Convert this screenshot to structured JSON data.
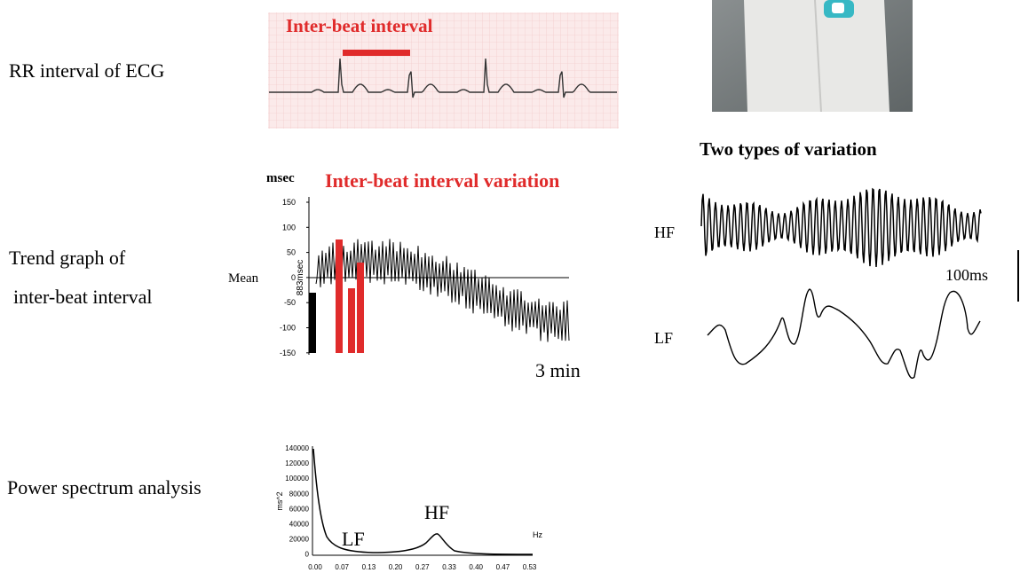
{
  "left_labels": {
    "ecg": "RR interval of ECG",
    "trend": [
      "Trend graph of",
      "inter-beat interval"
    ],
    "spectrum": "Power spectrum analysis"
  },
  "ecg_panel": {
    "annotation": "Inter-beat interval"
  },
  "trend_panel": {
    "unit": "msec",
    "title": "Inter-beat interval variation",
    "mean_label": "Mean",
    "axis_label": "883msec",
    "yticks": [
      "150",
      "100",
      "50",
      "0",
      "-50",
      "-100",
      "-150"
    ],
    "duration": "3 min"
  },
  "variation_panel": {
    "title": "Two types of variation",
    "hf": "HF",
    "lf": "LF",
    "scale": "100ms"
  },
  "spectrum_panel": {
    "y_label": "ms^2",
    "x_unit": "Hz",
    "yticks": [
      "140000",
      "120000",
      "100000",
      "80000",
      "60000",
      "40000",
      "20000",
      "0"
    ],
    "xticks": [
      "0.00",
      "0.07",
      "0.13",
      "0.20",
      "0.27",
      "0.33",
      "0.40",
      "0.47",
      "0.53"
    ],
    "lf": "LF",
    "hf": "HF"
  }
}
